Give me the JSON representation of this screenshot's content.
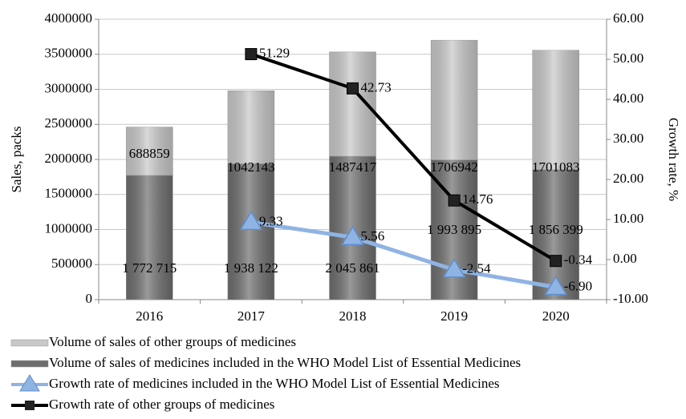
{
  "chart_data": {
    "type": "bar_line",
    "y_label": "Sales, packs",
    "y2_label": "Growth rate, %",
    "categories": [
      "2016",
      "2017",
      "2018",
      "2019",
      "2020"
    ],
    "ylim": [
      0,
      4000000
    ],
    "yticks": [
      0,
      500000,
      1000000,
      1500000,
      2000000,
      2500000,
      3000000,
      3500000,
      4000000
    ],
    "y2lim": [
      -10,
      60
    ],
    "y2ticks": [
      {
        "value": -10,
        "label": "-10.00"
      },
      {
        "value": 0,
        "label": "0.00"
      },
      {
        "value": 10,
        "label": "10.00"
      },
      {
        "value": 20,
        "label": "20.00"
      },
      {
        "value": 30,
        "label": "30.00"
      },
      {
        "value": 40,
        "label": "40.00"
      },
      {
        "value": 50,
        "label": "50.00"
      },
      {
        "value": 60,
        "label": "60.00"
      }
    ],
    "grid": true,
    "series": [
      {
        "name": "Volume of sales of other groups of medicines",
        "kind": "bar",
        "color": "#c8c8c8",
        "values": [
          688859,
          1042143,
          1487417,
          1706942,
          1701083
        ]
      },
      {
        "name": "Volume of sales of medicines included in the WHO Model List of Essential Medicines",
        "kind": "bar",
        "color": "#6e6e6e",
        "values": [
          1772715,
          1938122,
          2045861,
          1993895,
          1856399
        ],
        "value_labels": [
          "1 772 715",
          "1 938 122",
          "2 045 861",
          "1 993 895",
          "1 856 399"
        ]
      },
      {
        "name": "Growth rate of medicines included in the WHO Model List of Essential Medicines",
        "kind": "line",
        "axis": "y2",
        "color": "#8fb4e3",
        "values": [
          null,
          9.33,
          5.56,
          -2.54,
          -6.9
        ],
        "value_labels": [
          null,
          "9.33",
          "5.56",
          "-2.54",
          "-6.90"
        ]
      },
      {
        "name": "Growth rate of other groups of medicines",
        "kind": "line",
        "axis": "y2",
        "color": "#000000",
        "values": [
          null,
          51.29,
          42.73,
          14.76,
          -0.34
        ]
      }
    ]
  }
}
